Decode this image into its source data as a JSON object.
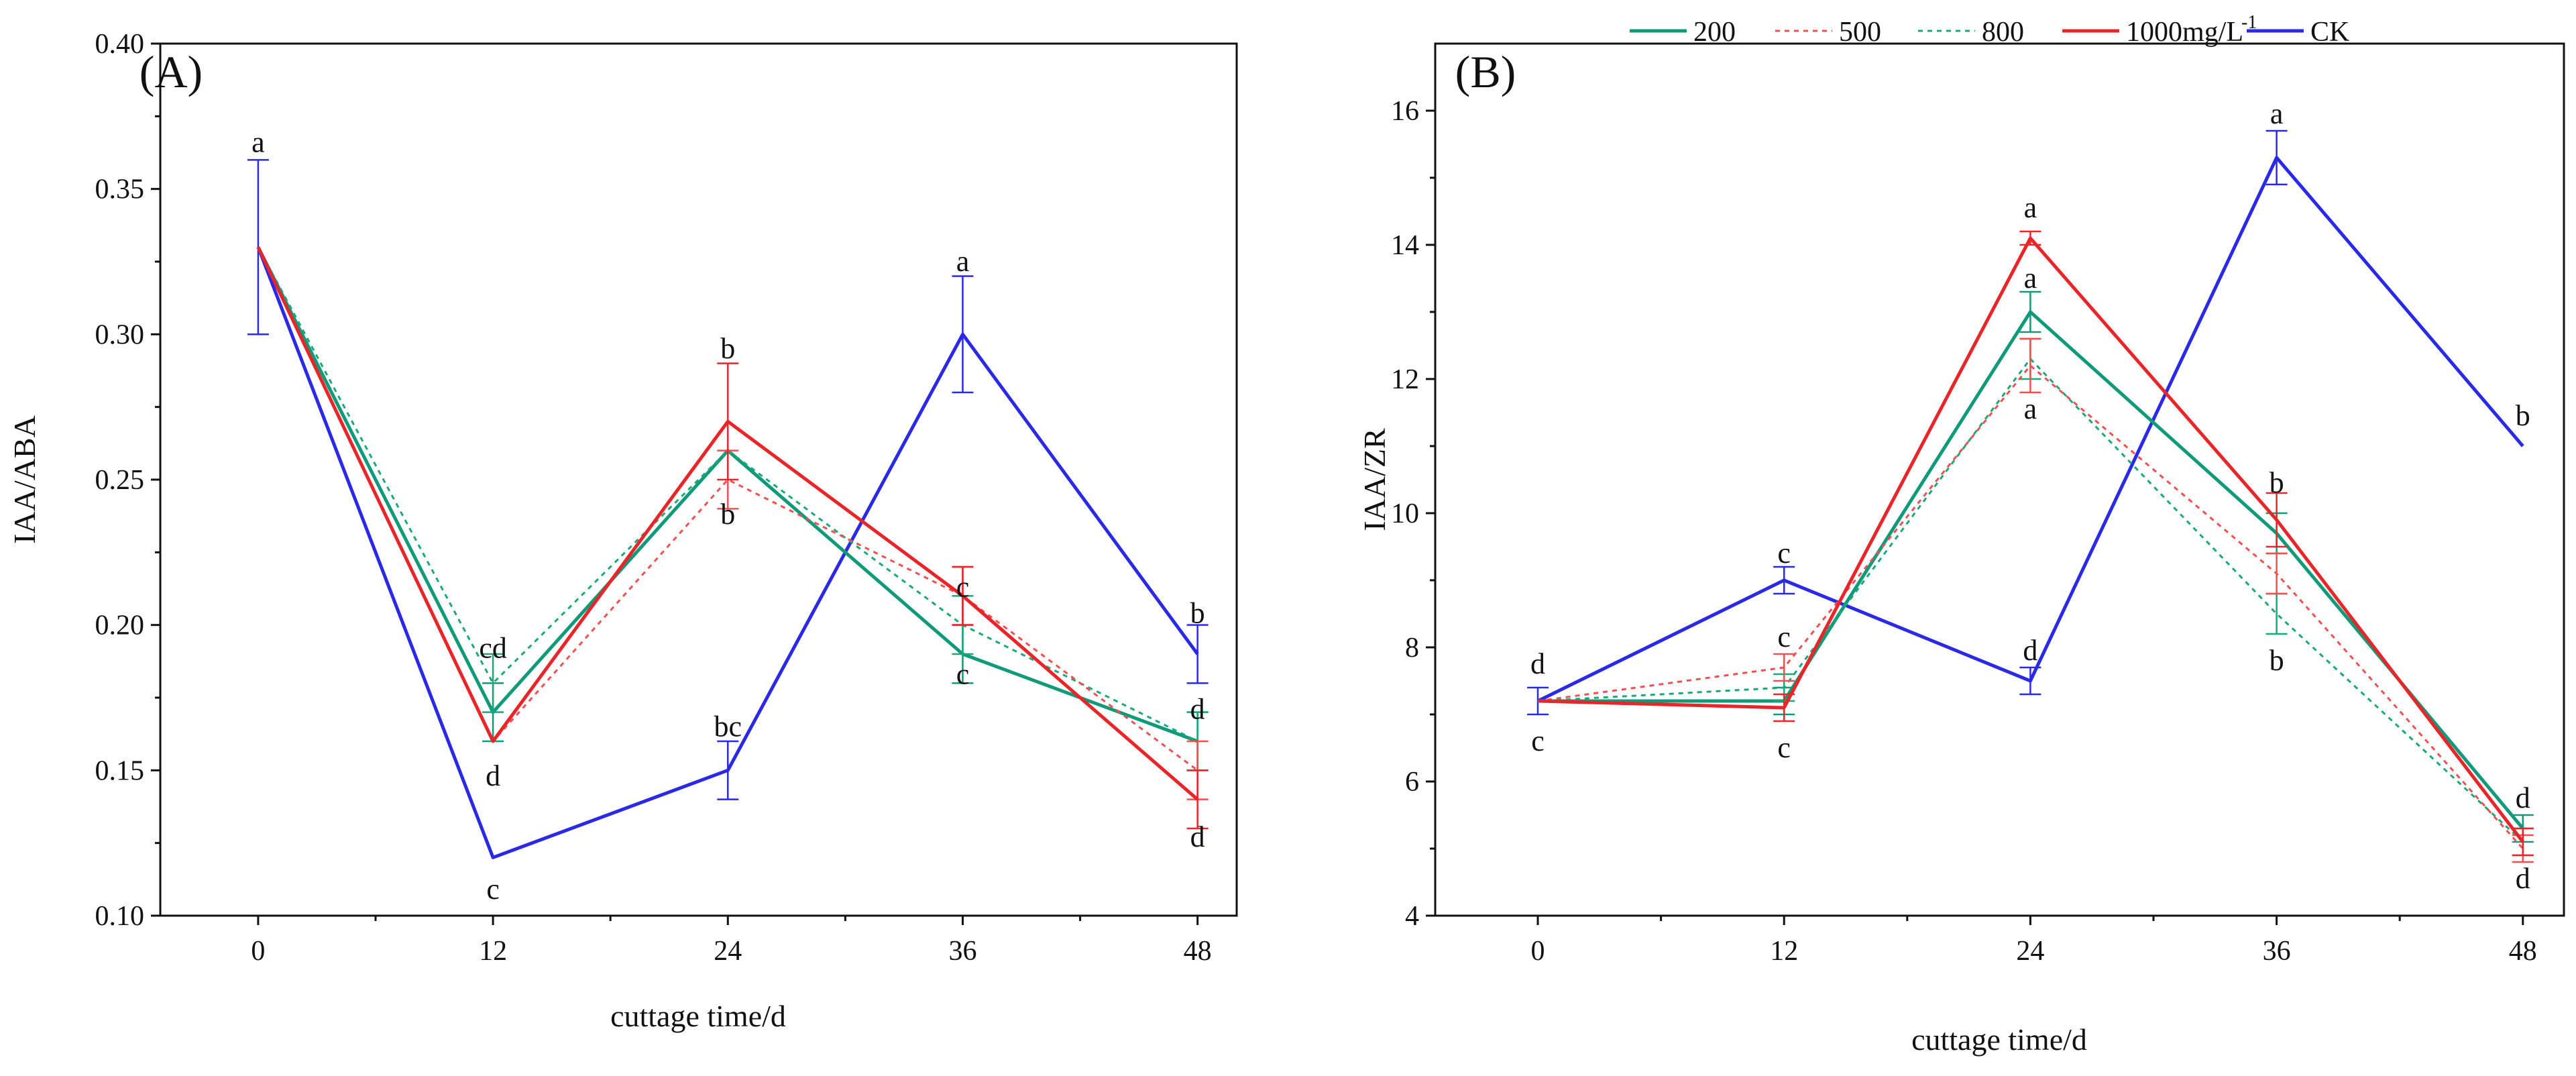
{
  "legend": {
    "placement": "top-right",
    "entries": [
      {
        "label": "200",
        "color": "#0f9a7a",
        "dash": "solid"
      },
      {
        "label": "500",
        "color": "#f05050",
        "dash": "dotted"
      },
      {
        "label": "800",
        "color": "#1aa878",
        "dash": "dotted"
      },
      {
        "label": "1000mg/L",
        "superscript": "-1",
        "color": "#e8262a",
        "dash": "solid"
      },
      {
        "label": "CK",
        "color": "#2a2ae6",
        "dash": "solid"
      }
    ]
  },
  "chart_data": [
    {
      "type": "line",
      "panel_label": "(A)",
      "xlabel": "cuttage time/d",
      "ylabel": "IAA/ABA",
      "x": [
        0,
        12,
        24,
        36,
        48
      ],
      "xlim": [
        -5,
        50
      ],
      "ylim": [
        0.1,
        0.4
      ],
      "yticks": [
        0.1,
        0.15,
        0.2,
        0.25,
        0.3,
        0.35,
        0.4
      ],
      "ytick_labels": [
        "0.10",
        "0.15",
        "0.20",
        "0.25",
        "0.30",
        "0.35",
        "0.40"
      ],
      "xticks": [
        0,
        12,
        24,
        36,
        48
      ],
      "xtick_labels": [
        "0",
        "12",
        "24",
        "36",
        "48"
      ],
      "series": [
        {
          "name": "200",
          "values": [
            0.33,
            0.17,
            0.26,
            0.19,
            0.16
          ],
          "errors": [
            0,
            0.01,
            0,
            0.01,
            0.01
          ]
        },
        {
          "name": "500",
          "values": [
            0.33,
            0.16,
            0.25,
            0.21,
            0.15
          ],
          "errors": [
            0,
            0,
            0.01,
            0.01,
            0.01
          ]
        },
        {
          "name": "800",
          "values": [
            0.33,
            0.18,
            0.26,
            0.2,
            0.16
          ],
          "errors": [
            0,
            0.01,
            0,
            0.01,
            0.01
          ]
        },
        {
          "name": "1000mg/L-1",
          "values": [
            0.33,
            0.16,
            0.27,
            0.21,
            0.14
          ],
          "errors": [
            0,
            0,
            0.02,
            0.01,
            0.01
          ]
        },
        {
          "name": "CK",
          "values": [
            0.33,
            0.12,
            0.15,
            0.3,
            0.19
          ],
          "errors": [
            0.03,
            0,
            0.01,
            0.02,
            0.01
          ]
        }
      ],
      "annotations": [
        {
          "text": "a",
          "x": 0,
          "y": 0.366
        },
        {
          "text": "cd",
          "x": 12,
          "y": 0.192
        },
        {
          "text": "d",
          "x": 12,
          "y": 0.148
        },
        {
          "text": "c",
          "x": 12,
          "y": 0.109
        },
        {
          "text": "b",
          "x": 24,
          "y": 0.295
        },
        {
          "text": "b",
          "x": 24,
          "y": 0.238
        },
        {
          "text": "bc",
          "x": 24,
          "y": 0.165
        },
        {
          "text": "a",
          "x": 36,
          "y": 0.325
        },
        {
          "text": "c",
          "x": 36,
          "y": 0.213
        },
        {
          "text": "c",
          "x": 36,
          "y": 0.183
        },
        {
          "text": "b",
          "x": 48,
          "y": 0.204
        },
        {
          "text": "d",
          "x": 48,
          "y": 0.171
        },
        {
          "text": "d",
          "x": 48,
          "y": 0.127
        }
      ]
    },
    {
      "type": "line",
      "panel_label": "(B)",
      "xlabel": "cuttage time/d",
      "ylabel": "IAA/ZR",
      "x": [
        0,
        12,
        24,
        36,
        48
      ],
      "xlim": [
        -5,
        50
      ],
      "ylim": [
        4,
        17
      ],
      "yticks": [
        4,
        6,
        8,
        10,
        12,
        14,
        16
      ],
      "ytick_labels": [
        "4",
        "6",
        "8",
        "10",
        "12",
        "14",
        "16"
      ],
      "xticks": [
        0,
        12,
        24,
        36,
        48
      ],
      "xtick_labels": [
        "0",
        "12",
        "24",
        "36",
        "48"
      ],
      "series": [
        {
          "name": "200",
          "values": [
            7.2,
            7.2,
            13.0,
            9.7,
            5.3
          ],
          "errors": [
            0,
            0.2,
            0.3,
            0.3,
            0.2
          ]
        },
        {
          "name": "500",
          "values": [
            7.2,
            7.7,
            12.2,
            9.1,
            5.0
          ],
          "errors": [
            0,
            0.2,
            0.4,
            0.3,
            0.2
          ]
        },
        {
          "name": "800",
          "values": [
            7.2,
            7.4,
            12.3,
            8.5,
            5.1
          ],
          "errors": [
            0,
            0.2,
            0.3,
            0.3,
            0.2
          ]
        },
        {
          "name": "1000mg/L-1",
          "values": [
            7.2,
            7.1,
            14.1,
            9.9,
            5.1
          ],
          "errors": [
            0,
            0.2,
            0.1,
            0.4,
            0.2
          ]
        },
        {
          "name": "CK",
          "values": [
            7.2,
            9.0,
            7.5,
            15.3,
            11.0
          ],
          "errors": [
            0.2,
            0.2,
            0.2,
            0.4,
            0
          ]
        }
      ],
      "annotations": [
        {
          "text": "d",
          "x": 0,
          "y": 7.75
        },
        {
          "text": "c",
          "x": 0,
          "y": 6.6
        },
        {
          "text": "c",
          "x": 12,
          "y": 9.4
        },
        {
          "text": "c",
          "x": 12,
          "y": 8.15
        },
        {
          "text": "c",
          "x": 12,
          "y": 6.5
        },
        {
          "text": "a",
          "x": 24,
          "y": 14.55
        },
        {
          "text": "a",
          "x": 24,
          "y": 13.5
        },
        {
          "text": "a",
          "x": 24,
          "y": 11.55
        },
        {
          "text": "d",
          "x": 24,
          "y": 7.95
        },
        {
          "text": "a",
          "x": 36,
          "y": 15.95
        },
        {
          "text": "b",
          "x": 36,
          "y": 10.45
        },
        {
          "text": "b",
          "x": 36,
          "y": 7.8
        },
        {
          "text": "b",
          "x": 48,
          "y": 11.45
        },
        {
          "text": "d",
          "x": 48,
          "y": 5.75
        },
        {
          "text": "d",
          "x": 48,
          "y": 4.55
        }
      ]
    }
  ]
}
